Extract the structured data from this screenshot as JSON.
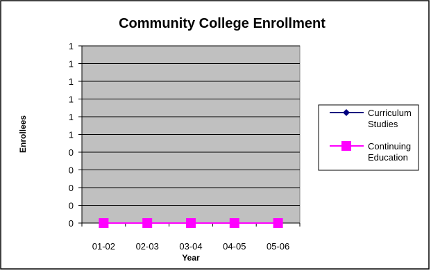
{
  "chart_data": {
    "type": "line",
    "title": "Community College Enrollment",
    "xlabel": "Year",
    "ylabel": "Enrollees",
    "categories": [
      "01-02",
      "02-03",
      "03-04",
      "04-05",
      "05-06"
    ],
    "y_tick_labels": [
      "0",
      "0",
      "0",
      "0",
      "0",
      "1",
      "1",
      "1",
      "1",
      "1",
      "1"
    ],
    "ylim": [
      0,
      1
    ],
    "grid": true,
    "legend_position": "right",
    "plot_background": "#c0c0c0",
    "series": [
      {
        "name": "Curriculum Studies",
        "line1": "Curriculum",
        "line2": "Studies",
        "values": [
          0,
          0,
          0,
          0,
          0
        ],
        "color": "#000080",
        "marker": "diamond"
      },
      {
        "name": "Continuing Education",
        "line1": "Continuing",
        "line2": "Education",
        "values": [
          0,
          0,
          0,
          0,
          0
        ],
        "color": "#ff00ff",
        "marker": "square"
      }
    ]
  }
}
